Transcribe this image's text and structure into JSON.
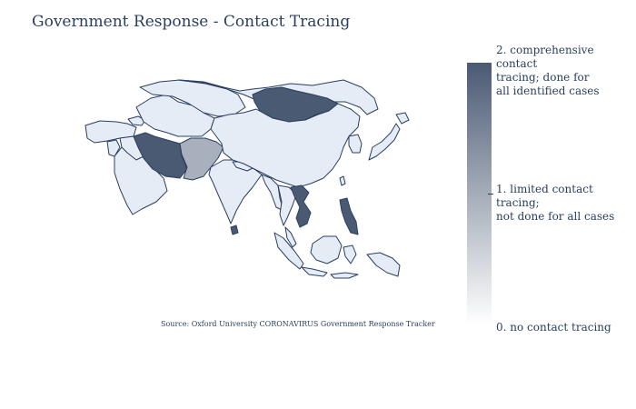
{
  "title": "Government Response - Contact Tracing",
  "source": "Source:  Oxford University CORONAVIRUS Government Response Tracker",
  "colorscale": {
    "min_color": "#ffffff",
    "max_color": "#4a5a73",
    "labels": {
      "max": "2. comprehensive contact\ntracing; done for\n all identified cases",
      "mid": "1. limited contact tracing;\nnot done for all cases",
      "min": "0. no contact tracing"
    }
  },
  "colors": {
    "level0": "#e5ecf6",
    "level1": "#a9b0bd",
    "level2": "#4a5a73",
    "border": "#2a3f5f"
  }
}
